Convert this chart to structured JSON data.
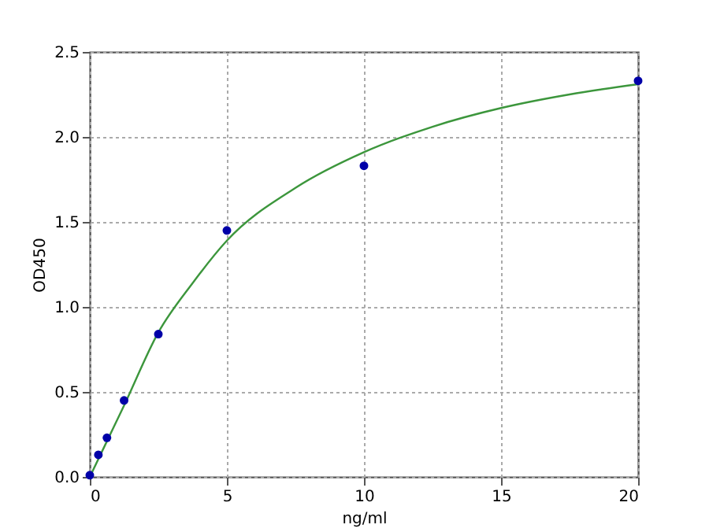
{
  "chart_data": {
    "type": "scatter",
    "xlabel": "ng/ml",
    "ylabel": "OD450",
    "xlim": [
      0,
      20
    ],
    "xticks": [
      0,
      5,
      10,
      15,
      20
    ],
    "ylim": [
      0,
      2.5
    ],
    "yticks": [
      {
        "value": 0,
        "label": "0.0"
      },
      0.5,
      {
        "value": 1,
        "label": "1.0"
      },
      1.5,
      {
        "value": 2,
        "label": "2.0"
      },
      2.5
    ],
    "grid": true,
    "marker": "circle",
    "series": [
      {
        "color": "#0000a8",
        "x": [
          0,
          0.3125,
          0.625,
          1.25,
          2.5,
          5,
          10,
          20
        ],
        "values": [
          0.01,
          0.13,
          0.23,
          0.45,
          0.84,
          1.45,
          1.83,
          2.33
        ]
      },
      {
        "type": "line",
        "color": "#3c963c",
        "marker": "none",
        "x": [
          0,
          0.625,
          1.25,
          2.5,
          3.75,
          5,
          7.5,
          10,
          12.5,
          15,
          17.5,
          20
        ],
        "values": [
          0,
          0.21,
          0.42,
          0.85,
          1.14,
          1.39,
          1.7,
          1.91,
          2.06,
          2.17,
          2.25,
          2.31
        ]
      }
    ]
  }
}
